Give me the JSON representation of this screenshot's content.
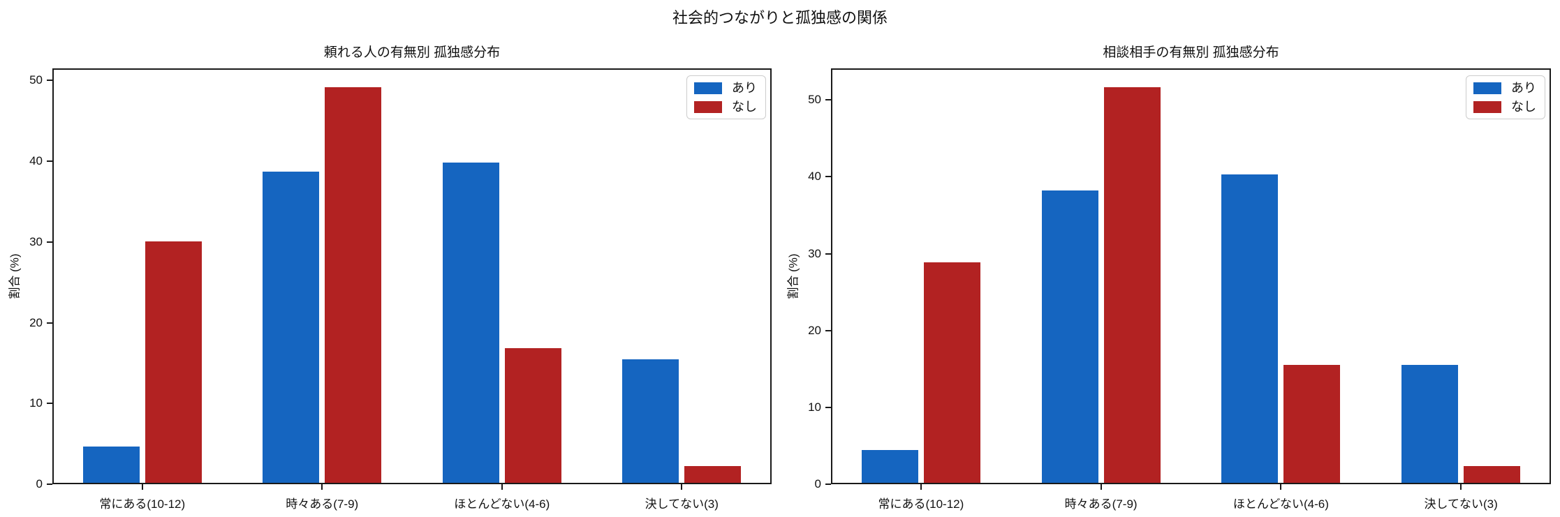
{
  "figure": {
    "title": "社会的つながりと孤独感の関係",
    "background": "#ffffff",
    "axis_color": "#1a1a1a"
  },
  "chart_data": [
    {
      "type": "bar",
      "title": "頼れる人の有無別 孤独感分布",
      "ylabel": "割合 (%)",
      "xlabel": "",
      "categories": [
        "常にある(10-12)",
        "時々ある(7-9)",
        "ほとんどない(4-6)",
        "決してない(3)"
      ],
      "series": [
        {
          "name": "あり",
          "color": "#1565C0",
          "values": [
            4.5,
            38.5,
            39.7,
            15.3
          ]
        },
        {
          "name": "なし",
          "color": "#B22222",
          "values": [
            29.9,
            49.0,
            16.7,
            2.1
          ]
        }
      ],
      "ylim": [
        0,
        51.5
      ],
      "yticks": [
        0,
        10,
        20,
        30,
        40,
        50
      ],
      "legend_position": "upper right",
      "grid": false
    },
    {
      "type": "bar",
      "title": "相談相手の有無別 孤独感分布",
      "ylabel": "割合 (%)",
      "xlabel": "",
      "categories": [
        "常にある(10-12)",
        "時々ある(7-9)",
        "ほとんどない(4-6)",
        "決してない(3)"
      ],
      "series": [
        {
          "name": "あり",
          "color": "#1565C0",
          "values": [
            4.3,
            38.0,
            40.1,
            15.3
          ]
        },
        {
          "name": "なし",
          "color": "#B22222",
          "values": [
            28.7,
            51.5,
            15.3,
            2.2
          ]
        }
      ],
      "ylim": [
        0,
        54.1
      ],
      "yticks": [
        0,
        10,
        20,
        30,
        40,
        50
      ],
      "legend_position": "upper right",
      "grid": false
    }
  ]
}
